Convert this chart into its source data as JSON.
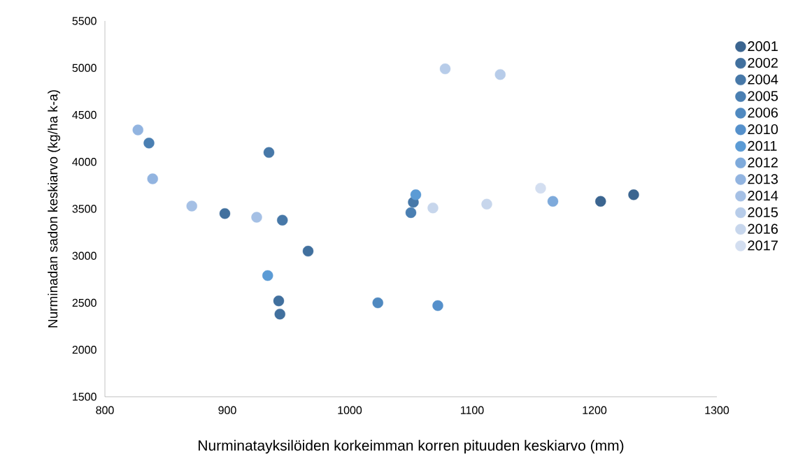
{
  "chart_data": {
    "type": "scatter",
    "xlabel": "Nurminatayksilöiden korkeimman korren pituuden keskiarvo (mm)",
    "ylabel": "Nurminadan sadon keskiarvo (kg/ha k-a)",
    "xlim": [
      800,
      1300
    ],
    "xticks": [
      800,
      900,
      1000,
      1100,
      1200,
      1300
    ],
    "ylim": [
      1500,
      5500
    ],
    "yticks": [
      1500,
      2000,
      2500,
      3000,
      3500,
      4000,
      4500,
      5000,
      5500
    ],
    "grid": false,
    "legend": "right",
    "marker": "circle",
    "series": [
      {
        "name": "2001",
        "color": "#3b6590",
        "x": [
          1205,
          1232
        ],
        "values": [
          3580,
          3650
        ]
      },
      {
        "name": "2002",
        "color": "#41709e",
        "x": [
          898,
          966,
          942,
          943
        ],
        "values": [
          3450,
          3050,
          2520,
          2380
        ]
      },
      {
        "name": "2004",
        "color": "#4778a8",
        "x": [
          934,
          945,
          1052
        ],
        "values": [
          4100,
          3380,
          3570
        ]
      },
      {
        "name": "2005",
        "color": "#4a7fb2",
        "x": [
          836,
          1050
        ],
        "values": [
          4200,
          3460
        ]
      },
      {
        "name": "2006",
        "color": "#4f89c0",
        "x": [
          1023
        ],
        "values": [
          2500
        ]
      },
      {
        "name": "2010",
        "color": "#5590cb",
        "x": [
          1072
        ],
        "values": [
          2470
        ]
      },
      {
        "name": "2011",
        "color": "#5b9bd5",
        "x": [
          933,
          1054
        ],
        "values": [
          2790,
          3650
        ]
      },
      {
        "name": "2012",
        "color": "#7eaadb",
        "x": [
          1166
        ],
        "values": [
          3580
        ]
      },
      {
        "name": "2013",
        "color": "#92b4e0",
        "x": [
          827,
          839
        ],
        "values": [
          4340,
          3820
        ]
      },
      {
        "name": "2014",
        "color": "#a5c0e5",
        "x": [
          871,
          924
        ],
        "values": [
          3530,
          3410
        ]
      },
      {
        "name": "2015",
        "color": "#b7cce9",
        "x": [
          1078,
          1123
        ],
        "values": [
          4990,
          4930
        ]
      },
      {
        "name": "2016",
        "color": "#c7d6ec",
        "x": [
          1068,
          1112
        ],
        "values": [
          3510,
          3550
        ]
      },
      {
        "name": "2017",
        "color": "#d3def0",
        "x": [
          1156
        ],
        "values": [
          3720
        ]
      }
    ]
  }
}
